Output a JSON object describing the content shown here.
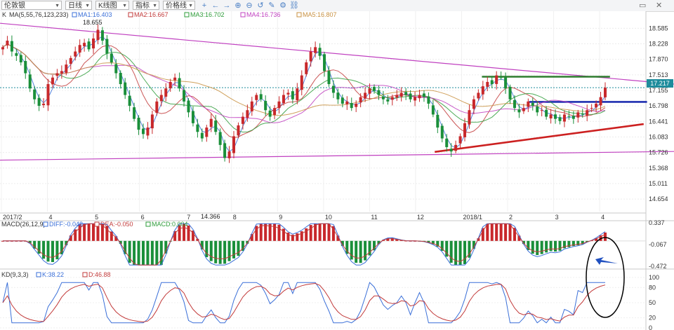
{
  "toolbar": {
    "instrument": "伦敦银",
    "period": "日线",
    "chart_type": "K线图",
    "indicator": "指标",
    "price_line": "价格线"
  },
  "chart_data": [
    {
      "type": "candlestick",
      "indicator_label": "K",
      "ma_label": "MA(5,55,76,123,233)",
      "legend": [
        {
          "name": "MA1:16.403",
          "color": "#3a6fd8"
        },
        {
          "name": "MA2:16.667",
          "color": "#c23a3a"
        },
        {
          "name": "MA3:16.702",
          "color": "#2e9c3a"
        },
        {
          "name": "MA4:16.736",
          "color": "#c040c0"
        },
        {
          "name": "MA5:16.807",
          "color": "#c89040"
        }
      ],
      "y_ticks": [
        18.585,
        18.228,
        17.87,
        17.513,
        17.155,
        16.798,
        16.441,
        16.083,
        15.726,
        15.368,
        15.011,
        14.654
      ],
      "ylim": [
        14.366,
        18.655
      ],
      "x_ticks": [
        "2017/2",
        "4",
        "5",
        "6",
        "7",
        "8",
        "9",
        "10",
        "11",
        "12",
        "2018/1",
        "2",
        "3",
        "4"
      ],
      "current_price": 17.217,
      "annotations": {
        "high": 18.655,
        "low": 14.366
      },
      "trendlines": [
        {
          "name": "upper-resistance",
          "color": "#c040c0",
          "from": [
            0,
            18.7
          ],
          "to": [
            1,
            17.3
          ]
        },
        {
          "name": "lower-support",
          "color": "#c040c0",
          "from": [
            0,
            15.55
          ],
          "to": [
            1,
            15.75
          ]
        },
        {
          "name": "green-resistance",
          "color": "#2e7d2e",
          "from": [
            0.715,
            17.47
          ],
          "to": [
            0.905,
            17.47
          ]
        },
        {
          "name": "blue-level",
          "color": "#1f2fb0",
          "from": [
            0.785,
            16.89
          ],
          "to": [
            0.96,
            16.89
          ]
        },
        {
          "name": "red-rising",
          "color": "#cc2020",
          "from": [
            0.645,
            15.74
          ],
          "to": [
            0.955,
            16.38
          ]
        }
      ],
      "close": [
        18.15,
        18.3,
        18.05,
        17.95,
        17.8,
        17.55,
        17.2,
        16.95,
        16.8,
        16.85,
        17.3,
        17.45,
        17.55,
        17.6,
        17.75,
        17.9,
        18.05,
        18.2,
        18.25,
        18.1,
        18.35,
        18.55,
        18.3,
        18.0,
        17.8,
        17.55,
        17.3,
        17.05,
        16.8,
        16.5,
        16.25,
        16.15,
        16.3,
        16.6,
        16.9,
        17.05,
        17.2,
        17.35,
        17.45,
        17.2,
        16.9,
        16.65,
        16.4,
        16.2,
        16.05,
        16.3,
        16.5,
        16.2,
        15.9,
        15.6,
        15.75,
        16.1,
        16.35,
        16.55,
        16.7,
        16.9,
        17.05,
        16.95,
        16.7,
        16.55,
        16.75,
        16.9,
        17.05,
        17.1,
        16.95,
        17.2,
        17.5,
        17.8,
        18.05,
        18.15,
        17.95,
        17.6,
        17.3,
        17.1,
        16.95,
        16.85,
        16.9,
        16.75,
        16.85,
        17.0,
        17.1,
        17.2,
        17.15,
        17.05,
        16.95,
        16.9,
        17.0,
        17.05,
        17.1,
        17.05,
        16.95,
        17.0,
        17.05,
        17.0,
        16.85,
        16.6,
        16.3,
        16.05,
        15.85,
        15.75,
        15.9,
        16.1,
        16.4,
        16.7,
        16.95,
        17.1,
        17.25,
        17.35,
        17.3,
        17.5,
        17.45,
        17.2,
        16.95,
        16.75,
        16.65,
        16.75,
        16.9,
        16.8,
        16.65,
        16.7,
        16.55,
        16.6,
        16.5,
        16.45,
        16.6,
        16.55,
        16.5,
        16.65,
        16.6,
        16.7,
        16.75,
        16.85,
        17.0,
        17.217
      ]
    },
    {
      "type": "bar",
      "indicator_label": "MACD(26,12,9)",
      "legend": [
        {
          "name": "DIFF:-0.048",
          "color": "#3a6fd8"
        },
        {
          "name": "DEA:-0.050",
          "color": "#c23a3a"
        },
        {
          "name": "MACD:0.004",
          "color": "#2e9c3a"
        }
      ],
      "y_ticks": [
        0.337,
        -0.067,
        -0.472
      ],
      "ylim": [
        -0.472,
        0.337
      ]
    },
    {
      "type": "line",
      "indicator_label": "KD(9,3,3)",
      "legend": [
        {
          "name": "K:38.22",
          "color": "#3a6fd8"
        },
        {
          "name": "D:46.88",
          "color": "#c23a3a"
        }
      ],
      "y_ticks": [
        100,
        80,
        50,
        20,
        0
      ],
      "ylim": [
        0,
        100
      ]
    }
  ]
}
